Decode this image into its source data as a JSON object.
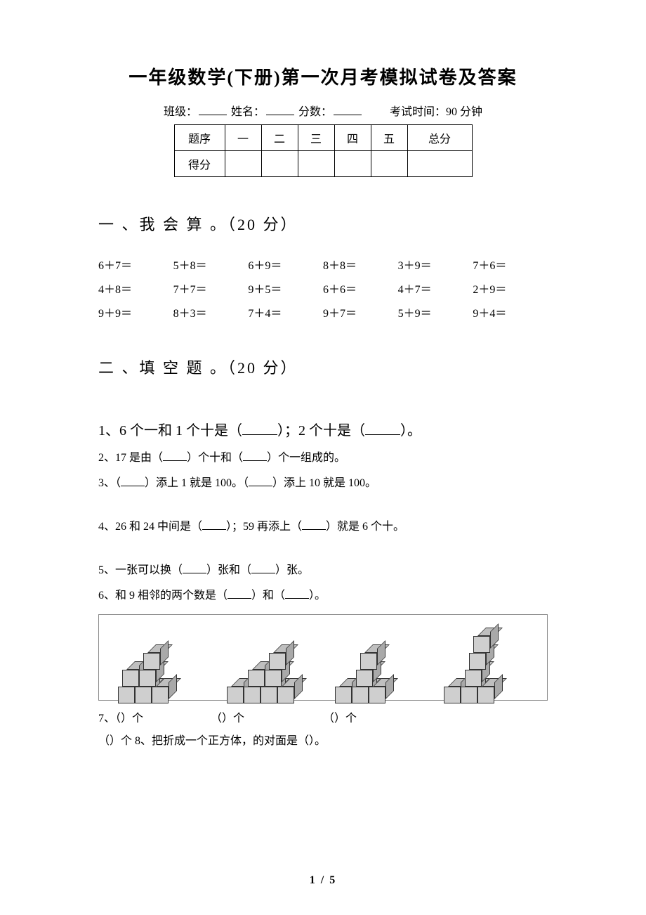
{
  "title": "一年级数学(下册)第一次月考模拟试卷及答案",
  "info": {
    "class_label": "班级：",
    "name_label": "姓名：",
    "score_label": "分数：",
    "time_label": "考试时间：90 分钟"
  },
  "score_table": {
    "row1": [
      "题序",
      "一",
      "二",
      "三",
      "四",
      "五",
      "总分"
    ],
    "row2_label": "得分"
  },
  "section1": {
    "heading": "一 、我 会 算 。（20 分）",
    "items": [
      "6＋7＝",
      "5＋8＝",
      "6＋9＝",
      "8＋8＝",
      "3＋9＝",
      "7＋6＝",
      "4＋8＝",
      "7＋7＝",
      "9＋5＝",
      "6＋6＝",
      "4＋7＝",
      "2＋9＝",
      "9＋9＝",
      "8＋3＝",
      "7＋4＝",
      "9＋7＝",
      "5＋9＝",
      "9＋4＝"
    ]
  },
  "section2": {
    "heading": "二 、填 空 题 。（20 分）",
    "q1_a": "1、6 个一和 1 个十是（",
    "q1_b": "）；2 个十是（",
    "q1_c": "）。",
    "q2_a": "2、17 是由（",
    "q2_b": "）个十和（",
    "q2_c": "）个一组成的。",
    "q3_a": "3、（",
    "q3_b": "）添上 1 就是 100。（",
    "q3_c": "）添上 10 就是 100。",
    "q4_a": "4、26 和 24 中间是（",
    "q4_b": "）；59 再添上（",
    "q4_c": "）就是 6 个十。",
    "q5_a": "5、一张可以换（",
    "q5_b": "）张和（",
    "q5_c": "）张。",
    "q6_a": "6、和 9 相邻的两个数是（",
    "q6_b": "）和（",
    "q6_c": "）。",
    "q7_a": "7、（",
    "q7_b": "）个",
    "q7_paren_open": "（",
    "q7_paren_close_ge": "）个",
    "q8_a": "）个 8、把折成一个正方体，的对面是（",
    "q8_b": "）。"
  },
  "cubes": {
    "border_color": "#888888",
    "cube_colors": {
      "top": "#bfbfbf",
      "front": "#cfcfcf",
      "side": "#a9a9a9",
      "edge": "#333333"
    },
    "figures": [
      {
        "positions": [
          [
            0,
            0
          ],
          [
            1,
            0
          ],
          [
            2,
            0
          ],
          [
            0,
            1
          ],
          [
            1,
            1
          ],
          [
            1,
            2
          ]
        ]
      },
      {
        "positions": [
          [
            0,
            0
          ],
          [
            1,
            0
          ],
          [
            2,
            0
          ],
          [
            3,
            0
          ],
          [
            1,
            1
          ],
          [
            2,
            1
          ],
          [
            2,
            2
          ]
        ]
      },
      {
        "positions": [
          [
            0,
            0
          ],
          [
            1,
            0
          ],
          [
            2,
            0
          ],
          [
            1,
            1
          ],
          [
            1,
            2
          ]
        ]
      },
      {
        "positions": [
          [
            0,
            0
          ],
          [
            1,
            0
          ],
          [
            2,
            0
          ],
          [
            1,
            1
          ],
          [
            1,
            2
          ],
          [
            1,
            3
          ]
        ]
      }
    ]
  },
  "page_number": "1 / 5",
  "colors": {
    "text": "#000000",
    "background": "#ffffff"
  }
}
